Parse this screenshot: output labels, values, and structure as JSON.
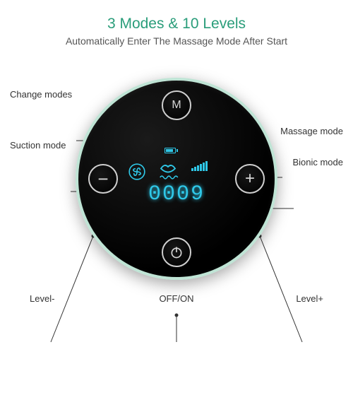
{
  "colors": {
    "accent": "#2a9d7a",
    "subtitle": "#555555",
    "callout": "#333333",
    "lcd": "#2fc8e8",
    "panel_border": "#bfe4d5",
    "btn_border": "#cfcfcf"
  },
  "header": {
    "title": "3 Modes & 10 Levels",
    "subtitle": "Automatically Enter The Massage Mode After Start"
  },
  "buttons": {
    "mode": "M",
    "minus": "−",
    "plus": "+",
    "power": "⏻"
  },
  "lcd": {
    "digits": "0009",
    "battery_level": 0.7,
    "level_bars": [
      4,
      6,
      8,
      10,
      12,
      14
    ]
  },
  "callouts": {
    "change_modes": "Change modes",
    "suction_mode": "Suction mode",
    "massage_mode": "Massage mode",
    "bionic_mode": "Bionic mode"
  },
  "bottom_labels": {
    "level_minus": "Level-",
    "off_on": "OFF/ON",
    "level_plus": "Level+"
  }
}
